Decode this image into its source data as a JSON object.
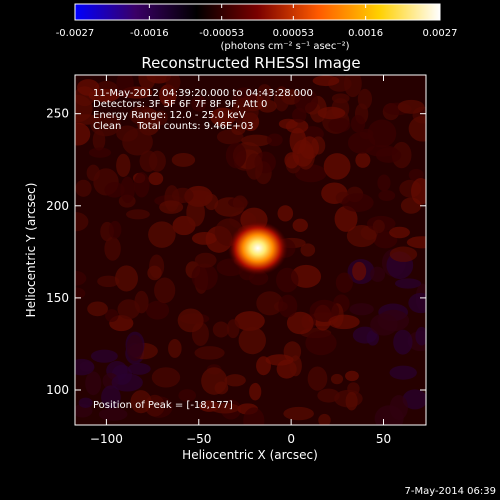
{
  "colorbar": {
    "ticks": [
      "-0.0027",
      "-0.0016",
      "-0.00053",
      "0.00053",
      "0.0016",
      "0.0027"
    ],
    "tick_values": [
      -0.0027,
      -0.0016,
      -0.00053,
      0.00053,
      0.0016,
      0.0027
    ],
    "range": [
      -0.0027,
      0.0027
    ],
    "units_label": "(photons cm⁻² s⁻¹ asec⁻²)",
    "stops": [
      "#0000ff",
      "#3a0066",
      "#000000",
      "#7a0000",
      "#ff5a00",
      "#ffd000",
      "#ffffff"
    ]
  },
  "chart_data": {
    "type": "heatmap",
    "title": "Reconstructed RHESSI Image",
    "xlabel": "Heliocentric X (arcsec)",
    "ylabel": "Heliocentric Y (arcsec)",
    "xlim": [
      -117,
      73
    ],
    "ylim": [
      81,
      271
    ],
    "xticks": [
      -100,
      -50,
      0,
      50
    ],
    "yticks": [
      100,
      150,
      200,
      250
    ],
    "peak": {
      "x": -18,
      "y": 177
    },
    "annotations": [
      "11-May-2012 04:39:20.000 to 04:43:28.000",
      "Detectors: 3F 5F 6F 7F 8F 9F, Att 0",
      "Energy Range: 12.0 - 25.0 keV",
      "Clean     Total counts: 9.46E+03"
    ],
    "position_of_peak": "Position of Peak = [-18,177]"
  },
  "footer": {
    "timestamp": "7-May-2014 06:39"
  }
}
